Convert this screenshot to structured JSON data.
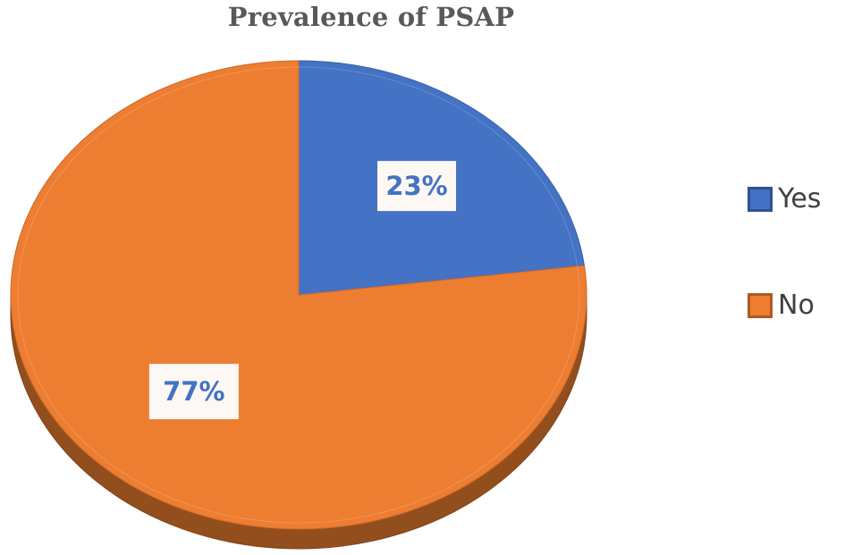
{
  "chart_data": {
    "type": "pie",
    "title": "Prevalence of PSAP",
    "categories": [
      "Yes",
      "No"
    ],
    "values": [
      23,
      77
    ],
    "data_labels": [
      "23%",
      "77%"
    ],
    "colors": {
      "Yes": "#4472c4",
      "No": "#ed7d31"
    },
    "label_text_color": "#4472c4",
    "legend": {
      "placement": "right",
      "entries": [
        "Yes",
        "No"
      ]
    },
    "style": "3d-tilted"
  }
}
